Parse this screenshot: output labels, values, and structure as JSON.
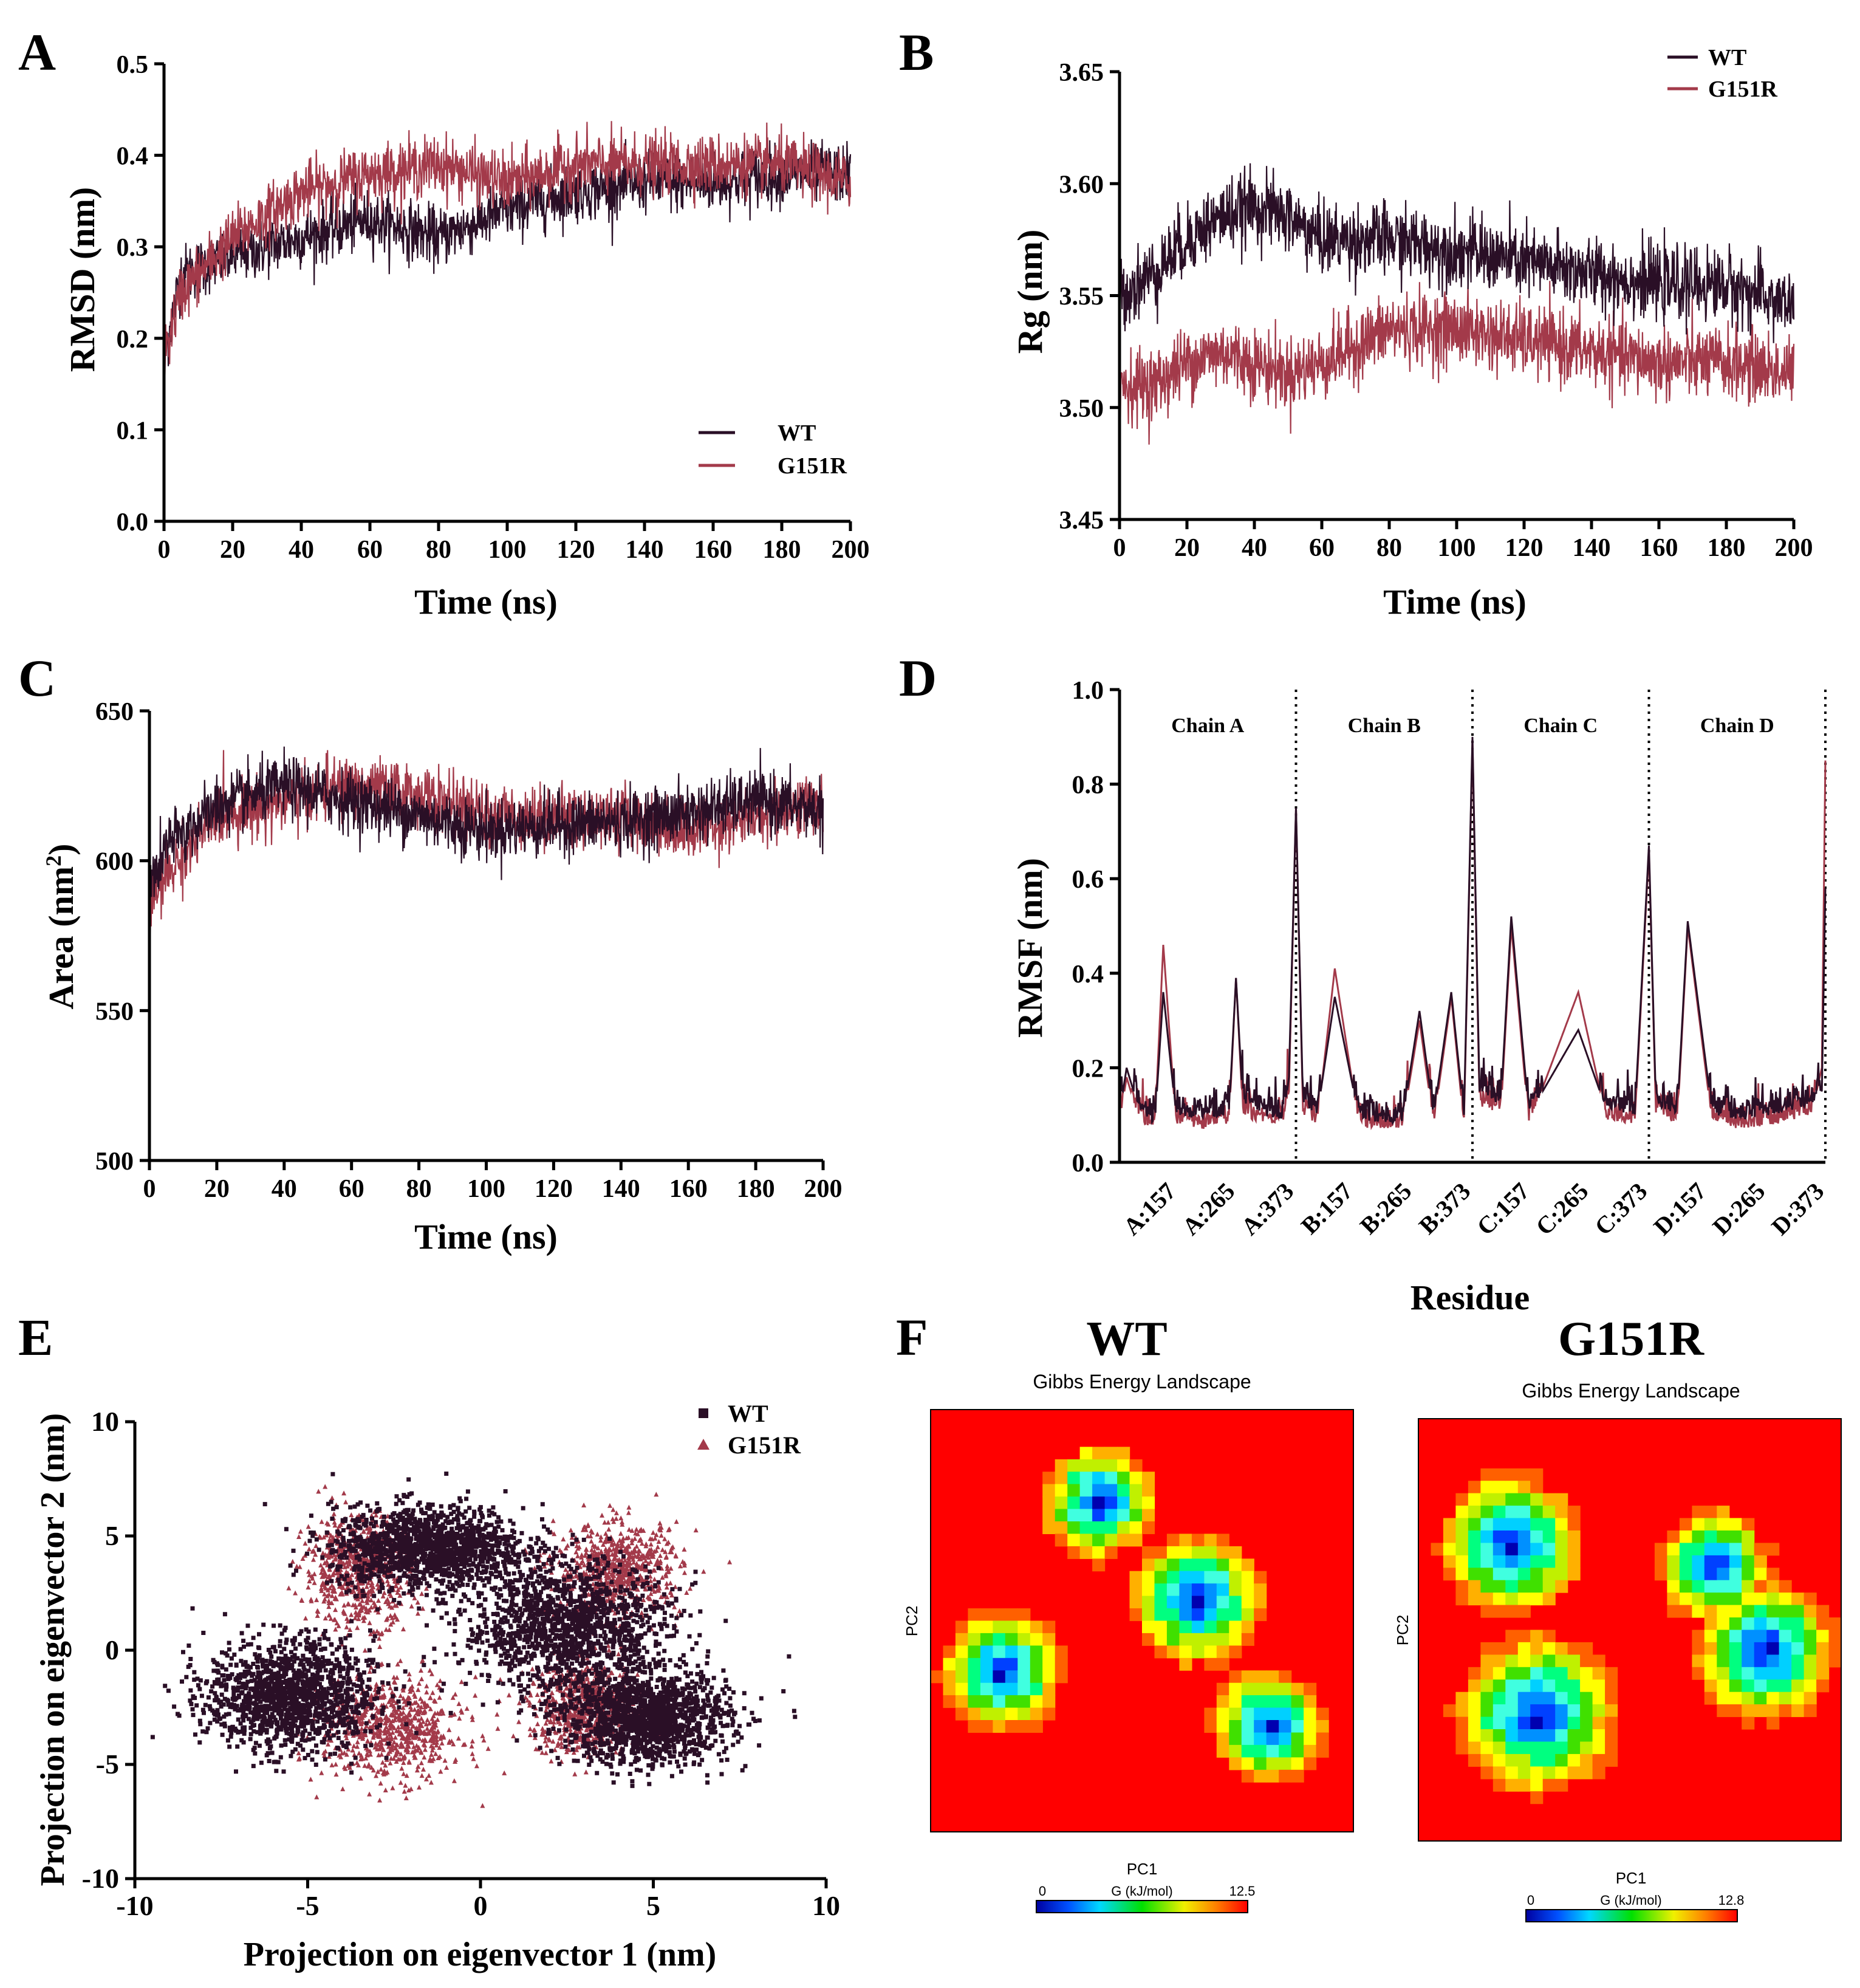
{
  "colors": {
    "wt": "#2a0f26",
    "mut": "#a33a4a"
  },
  "chart_data": [
    {
      "id": "A",
      "type": "line",
      "panel_label": "A",
      "xlabel": "Time (ns)",
      "ylabel": "RMSD (nm)",
      "xlim": [
        0,
        200
      ],
      "ylim": [
        0,
        0.5
      ],
      "xticks": [
        "0",
        "20",
        "40",
        "60",
        "80",
        "100",
        "120",
        "140",
        "160",
        "180",
        "200"
      ],
      "yticks": [
        "0.0",
        "0.1",
        "0.2",
        "0.3",
        "0.4",
        "0.5"
      ],
      "legend": [
        "WT",
        "G151R"
      ],
      "legend_position": "bottom-right",
      "series": [
        {
          "name": "WT",
          "x": [
            0,
            5,
            20,
            40,
            60,
            80,
            100,
            120,
            140,
            160,
            180,
            200
          ],
          "y": [
            0.18,
            0.27,
            0.29,
            0.31,
            0.33,
            0.31,
            0.34,
            0.36,
            0.37,
            0.37,
            0.38,
            0.38
          ]
        },
        {
          "name": "G151R",
          "x": [
            0,
            5,
            20,
            40,
            60,
            80,
            100,
            120,
            140,
            160,
            180,
            200
          ],
          "y": [
            0.18,
            0.25,
            0.31,
            0.36,
            0.38,
            0.39,
            0.37,
            0.39,
            0.39,
            0.39,
            0.39,
            0.37
          ]
        }
      ]
    },
    {
      "id": "B",
      "type": "line",
      "panel_label": "B",
      "xlabel": "Time (ns)",
      "ylabel": "Rg (nm)",
      "xlim": [
        0,
        200
      ],
      "ylim": [
        3.45,
        3.65
      ],
      "xticks": [
        "0",
        "20",
        "40",
        "60",
        "80",
        "100",
        "120",
        "140",
        "160",
        "180",
        "200"
      ],
      "yticks": [
        "3.45",
        "3.50",
        "3.55",
        "3.60",
        "3.65"
      ],
      "legend": [
        "WT",
        "G151R"
      ],
      "legend_position": "top-right",
      "series": [
        {
          "name": "WT",
          "x": [
            0,
            10,
            20,
            30,
            40,
            50,
            60,
            80,
            100,
            120,
            140,
            160,
            180,
            200
          ],
          "y": [
            3.55,
            3.56,
            3.575,
            3.585,
            3.59,
            3.585,
            3.575,
            3.575,
            3.57,
            3.565,
            3.56,
            3.555,
            3.555,
            3.545
          ]
        },
        {
          "name": "G151R",
          "x": [
            0,
            10,
            20,
            30,
            40,
            50,
            60,
            80,
            100,
            120,
            140,
            160,
            180,
            200
          ],
          "y": [
            3.51,
            3.51,
            3.52,
            3.525,
            3.52,
            3.515,
            3.52,
            3.535,
            3.535,
            3.53,
            3.525,
            3.52,
            3.52,
            3.515
          ]
        }
      ]
    },
    {
      "id": "C",
      "type": "line",
      "panel_label": "C",
      "xlabel": "Time (ns)",
      "ylabel": "Area (nm",
      "ylabel_sup": "2",
      "ylabel_close": ")",
      "xlim": [
        0,
        200
      ],
      "ylim": [
        500,
        650
      ],
      "xticks": [
        "0",
        "20",
        "40",
        "60",
        "80",
        "100",
        "120",
        "140",
        "160",
        "180",
        "200"
      ],
      "yticks": [
        "500",
        "550",
        "600",
        "650"
      ],
      "series": [
        {
          "name": "WT",
          "x": [
            0,
            5,
            20,
            40,
            60,
            80,
            100,
            120,
            140,
            160,
            180,
            200
          ],
          "y": [
            590,
            605,
            618,
            625,
            620,
            615,
            610,
            612,
            613,
            616,
            620,
            617
          ]
        },
        {
          "name": "G151R",
          "x": [
            0,
            5,
            20,
            40,
            60,
            80,
            100,
            120,
            140,
            160,
            180,
            200
          ],
          "y": [
            585,
            595,
            615,
            620,
            625,
            622,
            615,
            615,
            615,
            610,
            615,
            620
          ]
        }
      ]
    },
    {
      "id": "D",
      "type": "line",
      "panel_label": "D",
      "xlabel": "Residue",
      "ylabel": "RMSF (nm)",
      "xlim": [
        0,
        1000
      ],
      "ylim": [
        0,
        1.0
      ],
      "yticks": [
        "0.0",
        "0.2",
        "0.4",
        "0.6",
        "0.8",
        "1.0"
      ],
      "xticks": [
        "A:157",
        "A:265",
        "A:373",
        "B:157",
        "B:265",
        "B:373",
        "C:157",
        "C:265",
        "C:373",
        "D:157",
        "D:265",
        "D:373"
      ],
      "chain_labels": [
        "Chain A",
        "Chain B",
        "Chain C",
        "Chain D"
      ],
      "chain_boundaries": [
        250,
        500,
        750,
        1000
      ],
      "series": [
        {
          "name": "WT",
          "x": [
            0,
            10,
            30,
            50,
            62,
            80,
            120,
            155,
            165,
            175,
            200,
            232,
            240,
            250,
            260,
            280,
            305,
            340,
            400,
            425,
            445,
            470,
            488,
            500,
            510,
            540,
            555,
            580,
            650,
            690,
            730,
            750,
            760,
            790,
            805,
            840,
            880,
            930,
            980,
            995,
            1000
          ],
          "y": [
            0.1,
            0.2,
            0.1,
            0.08,
            0.36,
            0.1,
            0.09,
            0.1,
            0.39,
            0.12,
            0.1,
            0.09,
            0.18,
            0.75,
            0.12,
            0.1,
            0.35,
            0.09,
            0.08,
            0.32,
            0.1,
            0.36,
            0.1,
            0.9,
            0.15,
            0.12,
            0.52,
            0.1,
            0.28,
            0.11,
            0.1,
            0.67,
            0.12,
            0.1,
            0.51,
            0.1,
            0.09,
            0.1,
            0.12,
            0.15,
            0.58
          ]
        },
        {
          "name": "G151R",
          "x": [
            0,
            10,
            30,
            50,
            62,
            80,
            120,
            155,
            165,
            175,
            200,
            232,
            240,
            250,
            260,
            280,
            305,
            340,
            400,
            425,
            445,
            470,
            488,
            500,
            510,
            540,
            555,
            580,
            650,
            690,
            730,
            750,
            760,
            790,
            805,
            840,
            880,
            930,
            980,
            995,
            1000
          ],
          "y": [
            0.08,
            0.18,
            0.08,
            0.07,
            0.46,
            0.08,
            0.07,
            0.08,
            0.39,
            0.1,
            0.08,
            0.08,
            0.15,
            0.75,
            0.1,
            0.08,
            0.41,
            0.07,
            0.07,
            0.3,
            0.08,
            0.35,
            0.08,
            0.89,
            0.12,
            0.1,
            0.5,
            0.08,
            0.36,
            0.09,
            0.08,
            0.66,
            0.1,
            0.08,
            0.5,
            0.08,
            0.07,
            0.08,
            0.1,
            0.2,
            0.85
          ]
        }
      ]
    },
    {
      "id": "E",
      "type": "scatter",
      "panel_label": "E",
      "xlabel": "Projection on eigenvector 1 (nm)",
      "ylabel": "Projection on eigenvector 2 (nm)",
      "xlim": [
        -10,
        10
      ],
      "ylim": [
        -10,
        10
      ],
      "xticks": [
        "-10",
        "-5",
        "0",
        "5",
        "10"
      ],
      "yticks": [
        "-10",
        "-5",
        "0",
        "5",
        "10"
      ],
      "legend": [
        "WT",
        "G151R"
      ],
      "legend_position": "top-right",
      "series": [
        {
          "name": "WT",
          "clusters": [
            {
              "cx": -5.5,
              "cy": -2,
              "sx": 1.2,
              "sy": 1.2
            },
            {
              "cx": -1.5,
              "cy": 4.5,
              "sx": 1.4,
              "sy": 0.9
            },
            {
              "cx": 2.5,
              "cy": 1,
              "sx": 1.5,
              "sy": 1.4
            },
            {
              "cx": 4.8,
              "cy": -3,
              "sx": 1.2,
              "sy": 1.0
            }
          ]
        },
        {
          "name": "G151R",
          "clusters": [
            {
              "cx": -2.5,
              "cy": -3.5,
              "sx": 1.0,
              "sy": 1.1
            },
            {
              "cx": -3.5,
              "cy": 3.5,
              "sx": 0.8,
              "sy": 1.2
            },
            {
              "cx": 4,
              "cy": 3.5,
              "sx": 0.9,
              "sy": 1.0
            },
            {
              "cx": 3,
              "cy": -2.5,
              "sx": 0.8,
              "sy": 1.0
            }
          ]
        }
      ]
    },
    {
      "id": "F1",
      "type": "heatmap",
      "panel_label": "F",
      "heading": "WT",
      "title": "Gibbs Energy Landscape",
      "xlabel": "PC1",
      "ylabel": "PC2",
      "colorbar_label": "G (kJ/mol)",
      "colorbar_min": "0",
      "colorbar_max": "12.5",
      "basins": [
        {
          "cx": 0.17,
          "cy": 0.62,
          "r": 0.13
        },
        {
          "cx": 0.63,
          "cy": 0.45,
          "r": 0.14
        },
        {
          "cx": 0.4,
          "cy": 0.22,
          "r": 0.12
        },
        {
          "cx": 0.8,
          "cy": 0.75,
          "r": 0.12
        }
      ]
    },
    {
      "id": "F2",
      "type": "heatmap",
      "heading": "G151R",
      "title": "Gibbs Energy Landscape",
      "xlabel": "PC1",
      "ylabel": "PC2",
      "colorbar_label": "G (kJ/mol)",
      "colorbar_min": "0",
      "colorbar_max": "12.8",
      "basins": [
        {
          "cx": 0.22,
          "cy": 0.3,
          "r": 0.15
        },
        {
          "cx": 0.28,
          "cy": 0.7,
          "r": 0.17
        },
        {
          "cx": 0.82,
          "cy": 0.55,
          "r": 0.15
        },
        {
          "cx": 0.7,
          "cy": 0.35,
          "r": 0.12
        }
      ]
    }
  ]
}
